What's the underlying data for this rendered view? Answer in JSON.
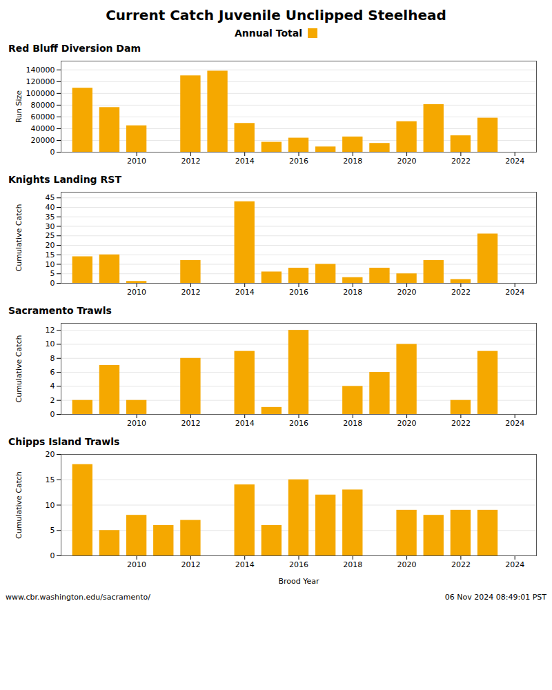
{
  "title": "Current Catch Juvenile Unclipped Steelhead",
  "legend": "top",
  "annotations": [
    "www.cbr.washington.edu/sacramento/",
    "06 Nov 2024 08:49:01 PST"
  ],
  "chart_data": [
    {
      "type": "bar",
      "title": "Red Bluff Diversion Dam",
      "ylabel": "Run Size",
      "x": [
        2008,
        2009,
        2010,
        2011,
        2012,
        2013,
        2014,
        2015,
        2016,
        2017,
        2018,
        2019,
        2020,
        2021,
        2022,
        2023
      ],
      "series": [
        {
          "name": "Annual Total",
          "color": "#F5A800",
          "values": [
            109000,
            76000,
            45000,
            0,
            130000,
            138000,
            49000,
            17000,
            24000,
            9000,
            26000,
            15000,
            52000,
            81000,
            28000,
            58000
          ]
        }
      ],
      "xlim": [
        2007.2,
        2024.8
      ],
      "xticks": [
        2010,
        2012,
        2014,
        2016,
        2018,
        2020,
        2022,
        2024
      ],
      "ylim": [
        0,
        155000
      ],
      "yticks": [
        0,
        20000,
        40000,
        60000,
        80000,
        100000,
        120000,
        140000
      ],
      "grid": true
    },
    {
      "type": "bar",
      "title": "Knights Landing RST",
      "ylabel": "Cumulative Catch",
      "x": [
        2008,
        2009,
        2010,
        2011,
        2012,
        2013,
        2014,
        2015,
        2016,
        2017,
        2018,
        2019,
        2020,
        2021,
        2022,
        2023
      ],
      "series": [
        {
          "name": "Annual Total",
          "color": "#F5A800",
          "values": [
            14,
            15,
            1,
            0,
            12,
            0,
            43,
            6,
            8,
            10,
            3,
            8,
            5,
            12,
            2,
            26
          ]
        }
      ],
      "xlim": [
        2007.2,
        2024.8
      ],
      "xticks": [
        2010,
        2012,
        2014,
        2016,
        2018,
        2020,
        2022,
        2024
      ],
      "ylim": [
        0,
        48
      ],
      "yticks": [
        0,
        5,
        10,
        15,
        20,
        25,
        30,
        35,
        40,
        45
      ],
      "grid": true
    },
    {
      "type": "bar",
      "title": "Sacramento Trawls",
      "ylabel": "Cumulative Catch",
      "x": [
        2008,
        2009,
        2010,
        2011,
        2012,
        2013,
        2014,
        2015,
        2016,
        2017,
        2018,
        2019,
        2020,
        2021,
        2022,
        2023
      ],
      "series": [
        {
          "name": "Annual Total",
          "color": "#F5A800",
          "values": [
            2,
            7,
            2,
            0,
            8,
            0,
            9,
            1,
            12,
            0,
            4,
            6,
            10,
            0,
            2,
            9
          ]
        }
      ],
      "xlim": [
        2007.2,
        2024.8
      ],
      "xticks": [
        2010,
        2012,
        2014,
        2016,
        2018,
        2020,
        2022,
        2024
      ],
      "ylim": [
        0,
        13
      ],
      "yticks": [
        0,
        2,
        4,
        6,
        8,
        10,
        12
      ],
      "grid": true
    },
    {
      "type": "bar",
      "title": "Chipps Island Trawls",
      "ylabel": "Cumulative Catch",
      "xlabel": "Brood Year",
      "x": [
        2008,
        2009,
        2010,
        2011,
        2012,
        2013,
        2014,
        2015,
        2016,
        2017,
        2018,
        2019,
        2020,
        2021,
        2022,
        2023
      ],
      "series": [
        {
          "name": "Annual Total",
          "color": "#F5A800",
          "values": [
            18,
            5,
            8,
            6,
            7,
            0,
            14,
            6,
            15,
            12,
            13,
            0,
            9,
            8,
            9,
            9
          ]
        }
      ],
      "xlim": [
        2007.2,
        2024.8
      ],
      "xticks": [
        2010,
        2012,
        2014,
        2016,
        2018,
        2020,
        2022,
        2024
      ],
      "ylim": [
        0,
        20
      ],
      "yticks": [
        0,
        5,
        10,
        15,
        20
      ],
      "grid": true
    }
  ]
}
